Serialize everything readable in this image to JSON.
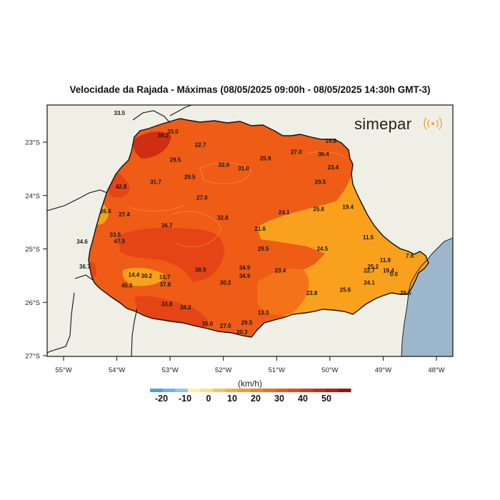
{
  "title": "Velocidade da Rajada - Máximas (08/05/2025 09:00h - 08/05/2025 14:30h GMT-3)",
  "brand": "simepar",
  "unit_label": "(km/h)",
  "colors": {
    "land": "#f0efe6",
    "ocean": "#9cb6cc",
    "low": "#f9a11c",
    "mid": "#f27318",
    "high": "#ee5c16",
    "higher": "#e54415",
    "highest": "#cf2e10"
  },
  "lat_ticks": [
    "23°S",
    "24°S",
    "25°S",
    "26°S",
    "27°S"
  ],
  "lon_ticks": [
    "55°W",
    "54°W",
    "53°W",
    "52°W",
    "51°W",
    "50°W",
    "49°W",
    "48°W"
  ],
  "colorbar": {
    "labels": [
      "-20",
      "-10",
      "0",
      "10",
      "20",
      "30",
      "40",
      "50"
    ],
    "colors": [
      "#4f9fe8",
      "#6db0ee",
      "#8fc3f2",
      "#fff0b0",
      "#fbe08a",
      "#f8c55a",
      "#f7ad3a",
      "#f59a2c",
      "#f2841f",
      "#ef701a",
      "#ec5c16",
      "#e64814",
      "#dc3812",
      "#cd2810",
      "#b81c0d",
      "#a0120a"
    ]
  },
  "stations": [
    {
      "value": "33.5",
      "lon": -53.95,
      "lat": -22.45
    },
    {
      "value": "33.0",
      "lon": -52.95,
      "lat": -22.8
    },
    {
      "value": "39.2",
      "lon": -53.13,
      "lat": -22.87
    },
    {
      "value": "22.7",
      "lon": -52.43,
      "lat": -23.05
    },
    {
      "value": "19.8",
      "lon": -49.98,
      "lat": -22.97
    },
    {
      "value": "27.0",
      "lon": -50.63,
      "lat": -23.18
    },
    {
      "value": "36.4",
      "lon": -50.12,
      "lat": -23.22
    },
    {
      "value": "25.9",
      "lon": -51.21,
      "lat": -23.3
    },
    {
      "value": "29.5",
      "lon": -52.9,
      "lat": -23.33
    },
    {
      "value": "32.0",
      "lon": -51.99,
      "lat": -23.42
    },
    {
      "value": "31.0",
      "lon": -51.62,
      "lat": -23.49
    },
    {
      "value": "23.4",
      "lon": -49.94,
      "lat": -23.47
    },
    {
      "value": "29.5",
      "lon": -52.63,
      "lat": -23.65
    },
    {
      "value": "29.5",
      "lon": -50.18,
      "lat": -23.74
    },
    {
      "value": "31.7",
      "lon": -53.27,
      "lat": -23.74
    },
    {
      "value": "42.8",
      "lon": -53.92,
      "lat": -23.83
    },
    {
      "value": "27.0",
      "lon": -52.4,
      "lat": -24.04
    },
    {
      "value": "19.4",
      "lon": -49.66,
      "lat": -24.21
    },
    {
      "value": "25.6",
      "lon": -50.21,
      "lat": -24.25
    },
    {
      "value": "26.6",
      "lon": -54.21,
      "lat": -24.29
    },
    {
      "value": "24.1",
      "lon": -50.86,
      "lat": -24.31
    },
    {
      "value": "27.4",
      "lon": -53.86,
      "lat": -24.35
    },
    {
      "value": "32.8",
      "lon": -52.01,
      "lat": -24.41
    },
    {
      "value": "36.7",
      "lon": -53.06,
      "lat": -24.56
    },
    {
      "value": "21.6",
      "lon": -51.31,
      "lat": -24.62
    },
    {
      "value": "33.5",
      "lon": -54.03,
      "lat": -24.73
    },
    {
      "value": "11.5",
      "lon": -49.28,
      "lat": -24.78
    },
    {
      "value": "47.5",
      "lon": -53.95,
      "lat": -24.85
    },
    {
      "value": "34.6",
      "lon": -54.65,
      "lat": -24.86
    },
    {
      "value": "29.5",
      "lon": -51.25,
      "lat": -24.99
    },
    {
      "value": "24.5",
      "lon": -50.14,
      "lat": -24.99
    },
    {
      "value": "7.6",
      "lon": -48.5,
      "lat": -25.13
    },
    {
      "value": "11.9",
      "lon": -48.96,
      "lat": -25.21
    },
    {
      "value": "36.7",
      "lon": -54.6,
      "lat": -25.33
    },
    {
      "value": "25.2",
      "lon": -49.19,
      "lat": -25.33
    },
    {
      "value": "34.9",
      "lon": -51.6,
      "lat": -25.35
    },
    {
      "value": "38.9",
      "lon": -52.43,
      "lat": -25.39
    },
    {
      "value": "23.4",
      "lon": -50.93,
      "lat": -25.4
    },
    {
      "value": "22.7",
      "lon": -49.26,
      "lat": -25.4
    },
    {
      "value": "19.4",
      "lon": -48.9,
      "lat": -25.4
    },
    {
      "value": "14.4",
      "lon": -53.68,
      "lat": -25.48
    },
    {
      "value": "30.2",
      "lon": -53.44,
      "lat": -25.5
    },
    {
      "value": "0.0",
      "lon": -48.8,
      "lat": -25.47
    },
    {
      "value": "34.9",
      "lon": -51.6,
      "lat": -25.5
    },
    {
      "value": "18.7",
      "lon": -53.1,
      "lat": -25.52
    },
    {
      "value": "30.2",
      "lon": -51.96,
      "lat": -25.63
    },
    {
      "value": "24.1",
      "lon": -49.26,
      "lat": -25.63
    },
    {
      "value": "37.8",
      "lon": -53.09,
      "lat": -25.66
    },
    {
      "value": "45.0",
      "lon": -53.81,
      "lat": -25.68
    },
    {
      "value": "25.6",
      "lon": -49.71,
      "lat": -25.76
    },
    {
      "value": "23.8",
      "lon": -50.34,
      "lat": -25.82
    },
    {
      "value": "29.5",
      "lon": -48.58,
      "lat": -25.82
    },
    {
      "value": "33.8",
      "lon": -53.06,
      "lat": -26.03
    },
    {
      "value": "34.2",
      "lon": -52.71,
      "lat": -26.09
    },
    {
      "value": "13.3",
      "lon": -51.25,
      "lat": -26.19
    },
    {
      "value": "29.5",
      "lon": -51.56,
      "lat": -26.38
    },
    {
      "value": "35.0",
      "lon": -52.3,
      "lat": -26.4
    },
    {
      "value": "27.0",
      "lon": -51.96,
      "lat": -26.44
    },
    {
      "value": "30.3",
      "lon": -51.65,
      "lat": -26.55
    }
  ]
}
